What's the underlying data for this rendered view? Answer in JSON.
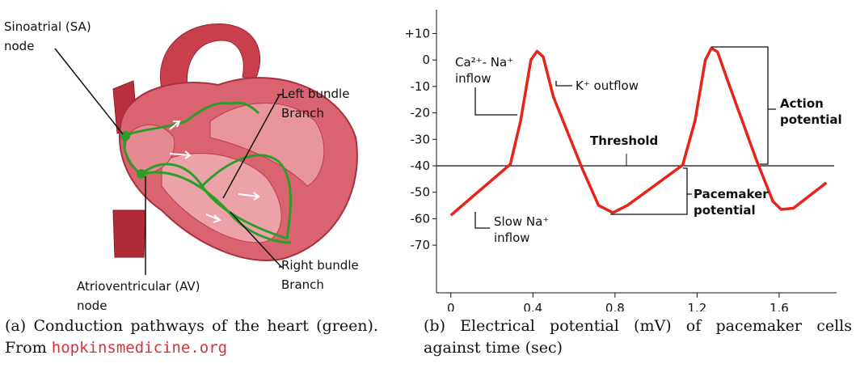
{
  "figure_a": {
    "labels": [
      {
        "lines": [
          "Sinoatrial (SA)",
          "node"
        ]
      },
      {
        "lines": [
          "Left bundle",
          "Branch"
        ]
      },
      {
        "lines": [
          "Atrioventricular (AV)",
          "node"
        ]
      },
      {
        "lines": [
          "Right bundle",
          "Branch"
        ]
      }
    ],
    "caption": {
      "text": "(a) Conduction pathways of the heart (green). From",
      "link": "hopkinsmedicine.org"
    }
  },
  "chart_data": {
    "type": "line",
    "x": [
      0,
      0.29,
      0.34,
      0.39,
      0.42,
      0.45,
      0.5,
      0.64,
      0.72,
      0.79,
      0.86,
      1.13,
      1.19,
      1.24,
      1.27,
      1.3,
      1.35,
      1.49,
      1.57,
      1.61,
      1.67,
      1.83
    ],
    "series": [
      {
        "color": "#e8231a",
        "values": [
          -58.7,
          -39.4,
          -23,
          0,
          3.3,
          1.2,
          -14,
          -41,
          -55,
          -57.7,
          -55,
          -39.7,
          -23,
          0,
          4.5,
          3,
          -8,
          -38,
          -53.5,
          -56.5,
          -56,
          -46.4
        ]
      }
    ],
    "xlim": [
      -0.07,
      1.88
    ],
    "ylim": [
      -88,
      19
    ],
    "xticks": [
      0,
      0.4,
      0.8,
      1.2,
      1.6
    ],
    "yticks": [
      {
        "value": 10,
        "label": "+10"
      },
      0,
      -10,
      -20,
      -30,
      -40,
      -50,
      -60,
      -70
    ],
    "threshold": {
      "value": -40,
      "label": "Threshold"
    },
    "annotations": [
      {
        "lines": [
          "Ca²⁺- Na⁺",
          "inflow"
        ]
      },
      {
        "lines": [
          "K⁺ outflow"
        ]
      },
      {
        "lines": [
          "Slow Na⁺",
          "inflow"
        ]
      },
      {
        "lines": [
          "Action",
          "potential"
        ]
      },
      {
        "lines": [
          "Pacemaker",
          "potential"
        ]
      }
    ],
    "caption": "(b) Electrical potential (mV) of pacemaker cells against time (sec)"
  }
}
